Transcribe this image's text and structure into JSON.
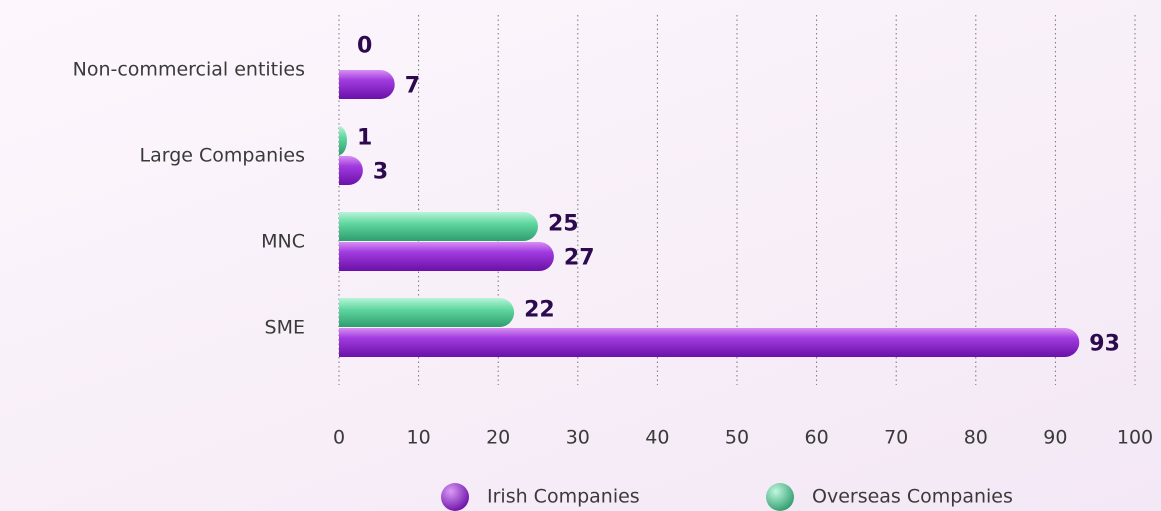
{
  "chart_data": {
    "type": "bar",
    "orientation": "horizontal",
    "categories": [
      "Non-commercial entities",
      "Large Companies",
      "MNC",
      "SME"
    ],
    "series": [
      {
        "name": "Irish Companies",
        "color": "#9b30d9",
        "values": [
          7,
          3,
          27,
          93
        ]
      },
      {
        "name": "Overseas Companies",
        "color": "#4fcf94",
        "values": [
          0,
          1,
          25,
          22
        ]
      }
    ],
    "xlim": [
      0,
      100
    ],
    "xticks": [
      0,
      10,
      20,
      30,
      40,
      50,
      60,
      70,
      80,
      90,
      100
    ],
    "grid": true,
    "legend": "bottom"
  }
}
